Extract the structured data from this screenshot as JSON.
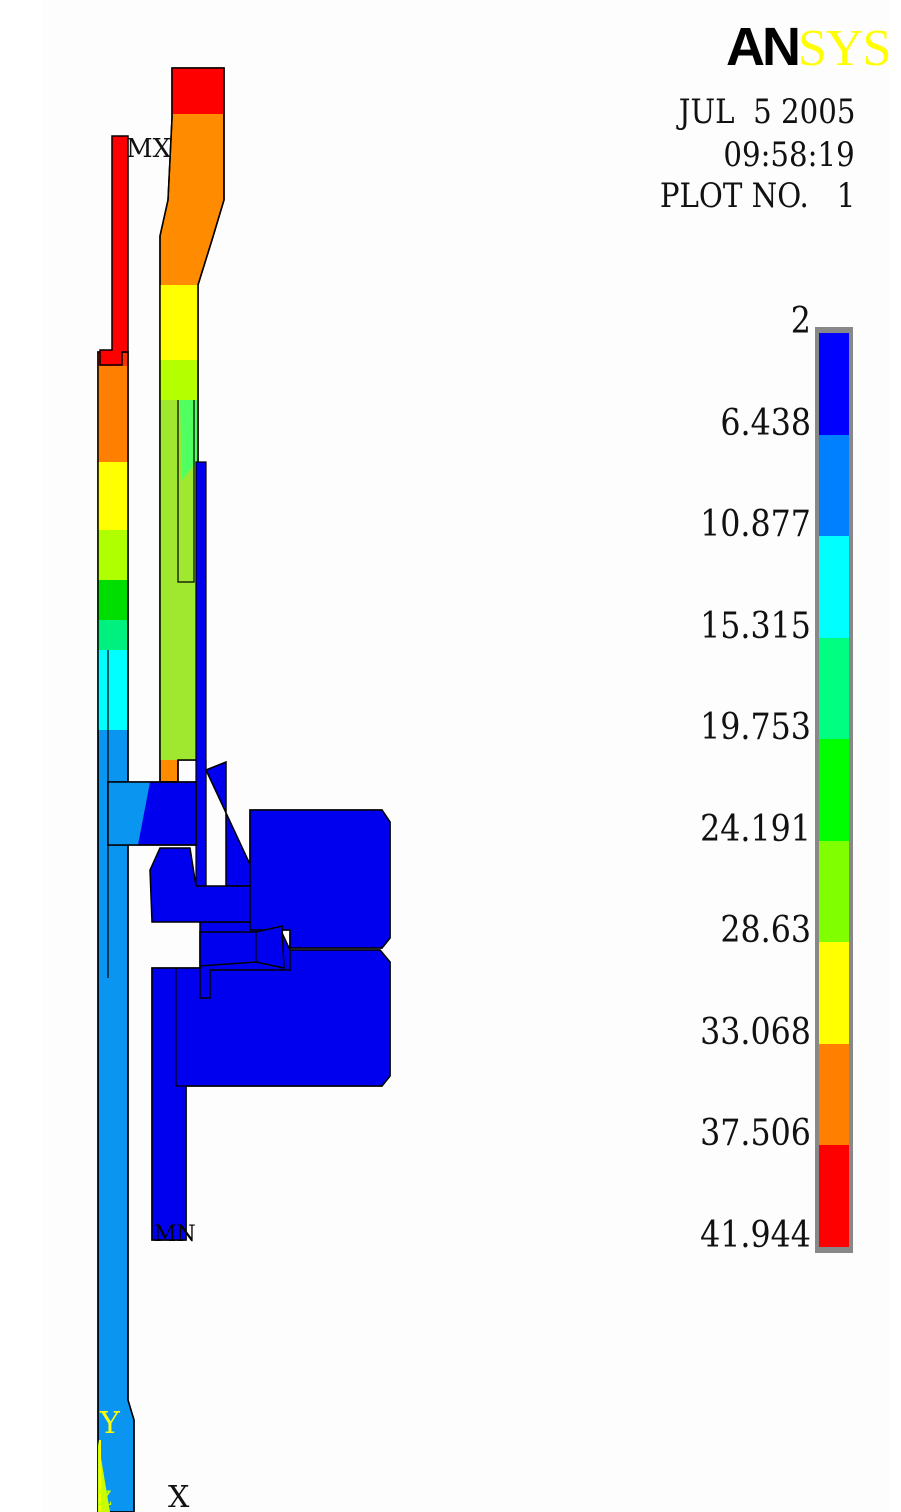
{
  "logo": {
    "part1": "AN",
    "part2": "SYS"
  },
  "header": {
    "date": "JUL  5 2005",
    "time": "09:58:19",
    "plot": "PLOT NO.   1"
  },
  "legend": {
    "labels": [
      "2",
      "6.438",
      "10.877",
      "15.315",
      "19.753",
      "24.191",
      "28.63",
      "33.068",
      "37.506",
      "41.944"
    ],
    "colors": [
      "#0000ff",
      "#0080ff",
      "#00ffff",
      "#00ff80",
      "#00ff00",
      "#80ff00",
      "#ffff00",
      "#ff8000",
      "#ff0000"
    ]
  },
  "markers": {
    "max": "MX",
    "min": "MN"
  },
  "axes": {
    "y": "Y",
    "z": "Z",
    "x": "X"
  }
}
